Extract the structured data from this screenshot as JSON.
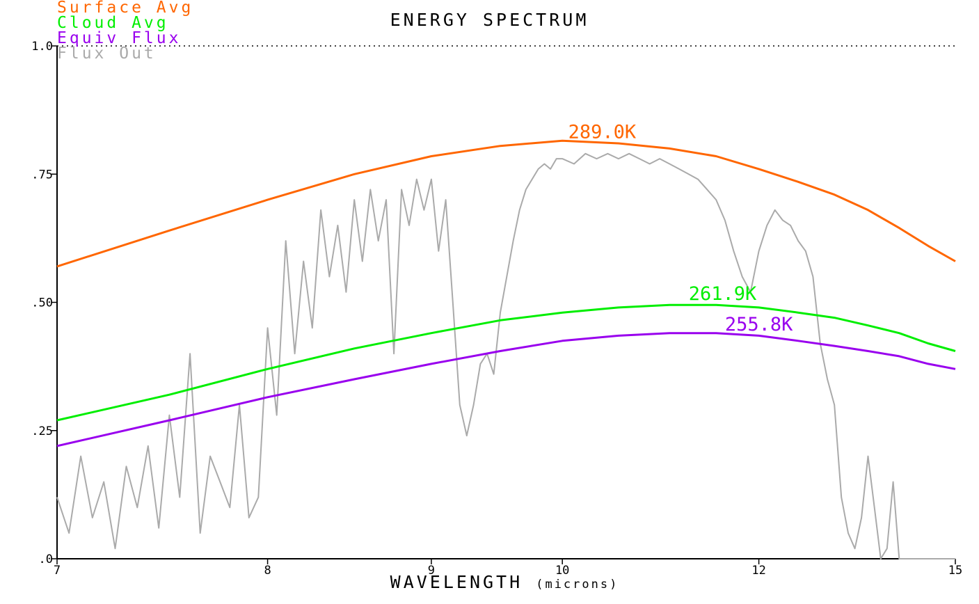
{
  "chart_data": {
    "type": "line",
    "title": "ENERGY SPECTRUM",
    "xlabel": "WAVELENGTH",
    "xlabel_unit": "(microns)",
    "xlim": [
      7,
      15
    ],
    "xscale": "reciprocal",
    "ylim": [
      0,
      1.0
    ],
    "x_ticks": [
      {
        "value": 7,
        "label": "7"
      },
      {
        "value": 8,
        "label": "8"
      },
      {
        "value": 9,
        "label": "9"
      },
      {
        "value": 10,
        "label": "10"
      },
      {
        "value": 12,
        "label": "12"
      },
      {
        "value": 15,
        "label": "15"
      }
    ],
    "y_ticks": [
      {
        "value": 0,
        "label": ".0"
      },
      {
        "value": 0.25,
        "label": ".25"
      },
      {
        "value": 0.5,
        "label": ".50"
      },
      {
        "value": 0.75,
        "label": ".75"
      },
      {
        "value": 1.0,
        "label": "1.0"
      }
    ],
    "reference_line": {
      "y": 1.0,
      "style": "dotted"
    },
    "series": [
      {
        "name": "Surface Avg",
        "color": "#ff6600",
        "label": "289.0K",
        "label_x": 10.05,
        "label_y": 0.82,
        "x": [
          7.0,
          7.5,
          8.0,
          8.5,
          9.0,
          9.5,
          10.0,
          10.5,
          11.0,
          11.5,
          12.0,
          12.5,
          13.0,
          13.5,
          14.0,
          14.5,
          15.0
        ],
        "y": [
          0.57,
          0.64,
          0.7,
          0.75,
          0.785,
          0.805,
          0.815,
          0.81,
          0.8,
          0.785,
          0.76,
          0.735,
          0.71,
          0.68,
          0.645,
          0.61,
          0.58
        ]
      },
      {
        "name": "Cloud Avg",
        "color": "#00ee00",
        "label": "261.9K",
        "label_x": 11.2,
        "label_y": 0.505,
        "x": [
          7.0,
          7.5,
          8.0,
          8.5,
          9.0,
          9.5,
          10.0,
          10.5,
          11.0,
          11.5,
          12.0,
          12.5,
          13.0,
          13.5,
          14.0,
          14.5,
          15.0
        ],
        "y": [
          0.27,
          0.32,
          0.37,
          0.41,
          0.44,
          0.465,
          0.48,
          0.49,
          0.495,
          0.495,
          0.49,
          0.48,
          0.47,
          0.455,
          0.44,
          0.42,
          0.405
        ]
      },
      {
        "name": "Equiv Flux",
        "color": "#9900ee",
        "label": "255.8K",
        "label_x": 11.6,
        "label_y": 0.445,
        "x": [
          7.0,
          7.5,
          8.0,
          8.5,
          9.0,
          9.5,
          10.0,
          10.5,
          11.0,
          11.5,
          12.0,
          12.5,
          13.0,
          13.5,
          14.0,
          14.5,
          15.0
        ],
        "y": [
          0.22,
          0.27,
          0.315,
          0.35,
          0.38,
          0.405,
          0.425,
          0.435,
          0.44,
          0.44,
          0.435,
          0.425,
          0.415,
          0.405,
          0.395,
          0.38,
          0.37
        ]
      },
      {
        "name": "Flux Out",
        "color": "#aaaaaa",
        "x": [
          7.0,
          7.05,
          7.1,
          7.15,
          7.2,
          7.25,
          7.3,
          7.35,
          7.4,
          7.45,
          7.5,
          7.55,
          7.6,
          7.65,
          7.7,
          7.75,
          7.8,
          7.85,
          7.9,
          7.95,
          8.0,
          8.05,
          8.1,
          8.15,
          8.2,
          8.25,
          8.3,
          8.35,
          8.4,
          8.45,
          8.5,
          8.55,
          8.6,
          8.65,
          8.7,
          8.75,
          8.8,
          8.85,
          8.9,
          8.95,
          9.0,
          9.05,
          9.1,
          9.15,
          9.2,
          9.25,
          9.3,
          9.35,
          9.4,
          9.45,
          9.5,
          9.55,
          9.6,
          9.65,
          9.7,
          9.75,
          9.8,
          9.85,
          9.9,
          9.95,
          10.0,
          10.1,
          10.2,
          10.3,
          10.4,
          10.5,
          10.6,
          10.7,
          10.8,
          10.9,
          11.0,
          11.1,
          11.2,
          11.3,
          11.4,
          11.5,
          11.6,
          11.7,
          11.8,
          11.9,
          12.0,
          12.1,
          12.2,
          12.3,
          12.4,
          12.5,
          12.6,
          12.7,
          12.8,
          12.9,
          13.0,
          13.1,
          13.2,
          13.3,
          13.4,
          13.5,
          13.6,
          13.7,
          13.8,
          13.9,
          14.0,
          14.1,
          14.2,
          14.3,
          14.4,
          14.5,
          14.6,
          14.7,
          14.8,
          14.9,
          15.0
        ],
        "y": [
          0.12,
          0.05,
          0.2,
          0.08,
          0.15,
          0.02,
          0.18,
          0.1,
          0.22,
          0.06,
          0.28,
          0.12,
          0.4,
          0.05,
          0.2,
          0.15,
          0.1,
          0.3,
          0.08,
          0.12,
          0.45,
          0.28,
          0.62,
          0.4,
          0.58,
          0.45,
          0.68,
          0.55,
          0.65,
          0.52,
          0.7,
          0.58,
          0.72,
          0.62,
          0.7,
          0.4,
          0.72,
          0.65,
          0.74,
          0.68,
          0.74,
          0.6,
          0.7,
          0.5,
          0.3,
          0.24,
          0.3,
          0.38,
          0.4,
          0.36,
          0.48,
          0.55,
          0.62,
          0.68,
          0.72,
          0.74,
          0.76,
          0.77,
          0.76,
          0.78,
          0.78,
          0.77,
          0.79,
          0.78,
          0.79,
          0.78,
          0.79,
          0.78,
          0.77,
          0.78,
          0.77,
          0.76,
          0.75,
          0.74,
          0.72,
          0.7,
          0.66,
          0.6,
          0.55,
          0.52,
          0.6,
          0.65,
          0.68,
          0.66,
          0.65,
          0.62,
          0.6,
          0.55,
          0.42,
          0.35,
          0.3,
          0.12,
          0.05,
          0.02,
          0.08,
          0.2,
          0.1,
          0.0,
          0.02,
          0.15,
          0.0,
          0.0,
          0.0,
          0.0,
          0.0,
          0.0,
          0.0,
          0.0,
          0.0,
          0.0,
          0.0
        ]
      }
    ],
    "legend": {
      "position": "top-left"
    }
  }
}
